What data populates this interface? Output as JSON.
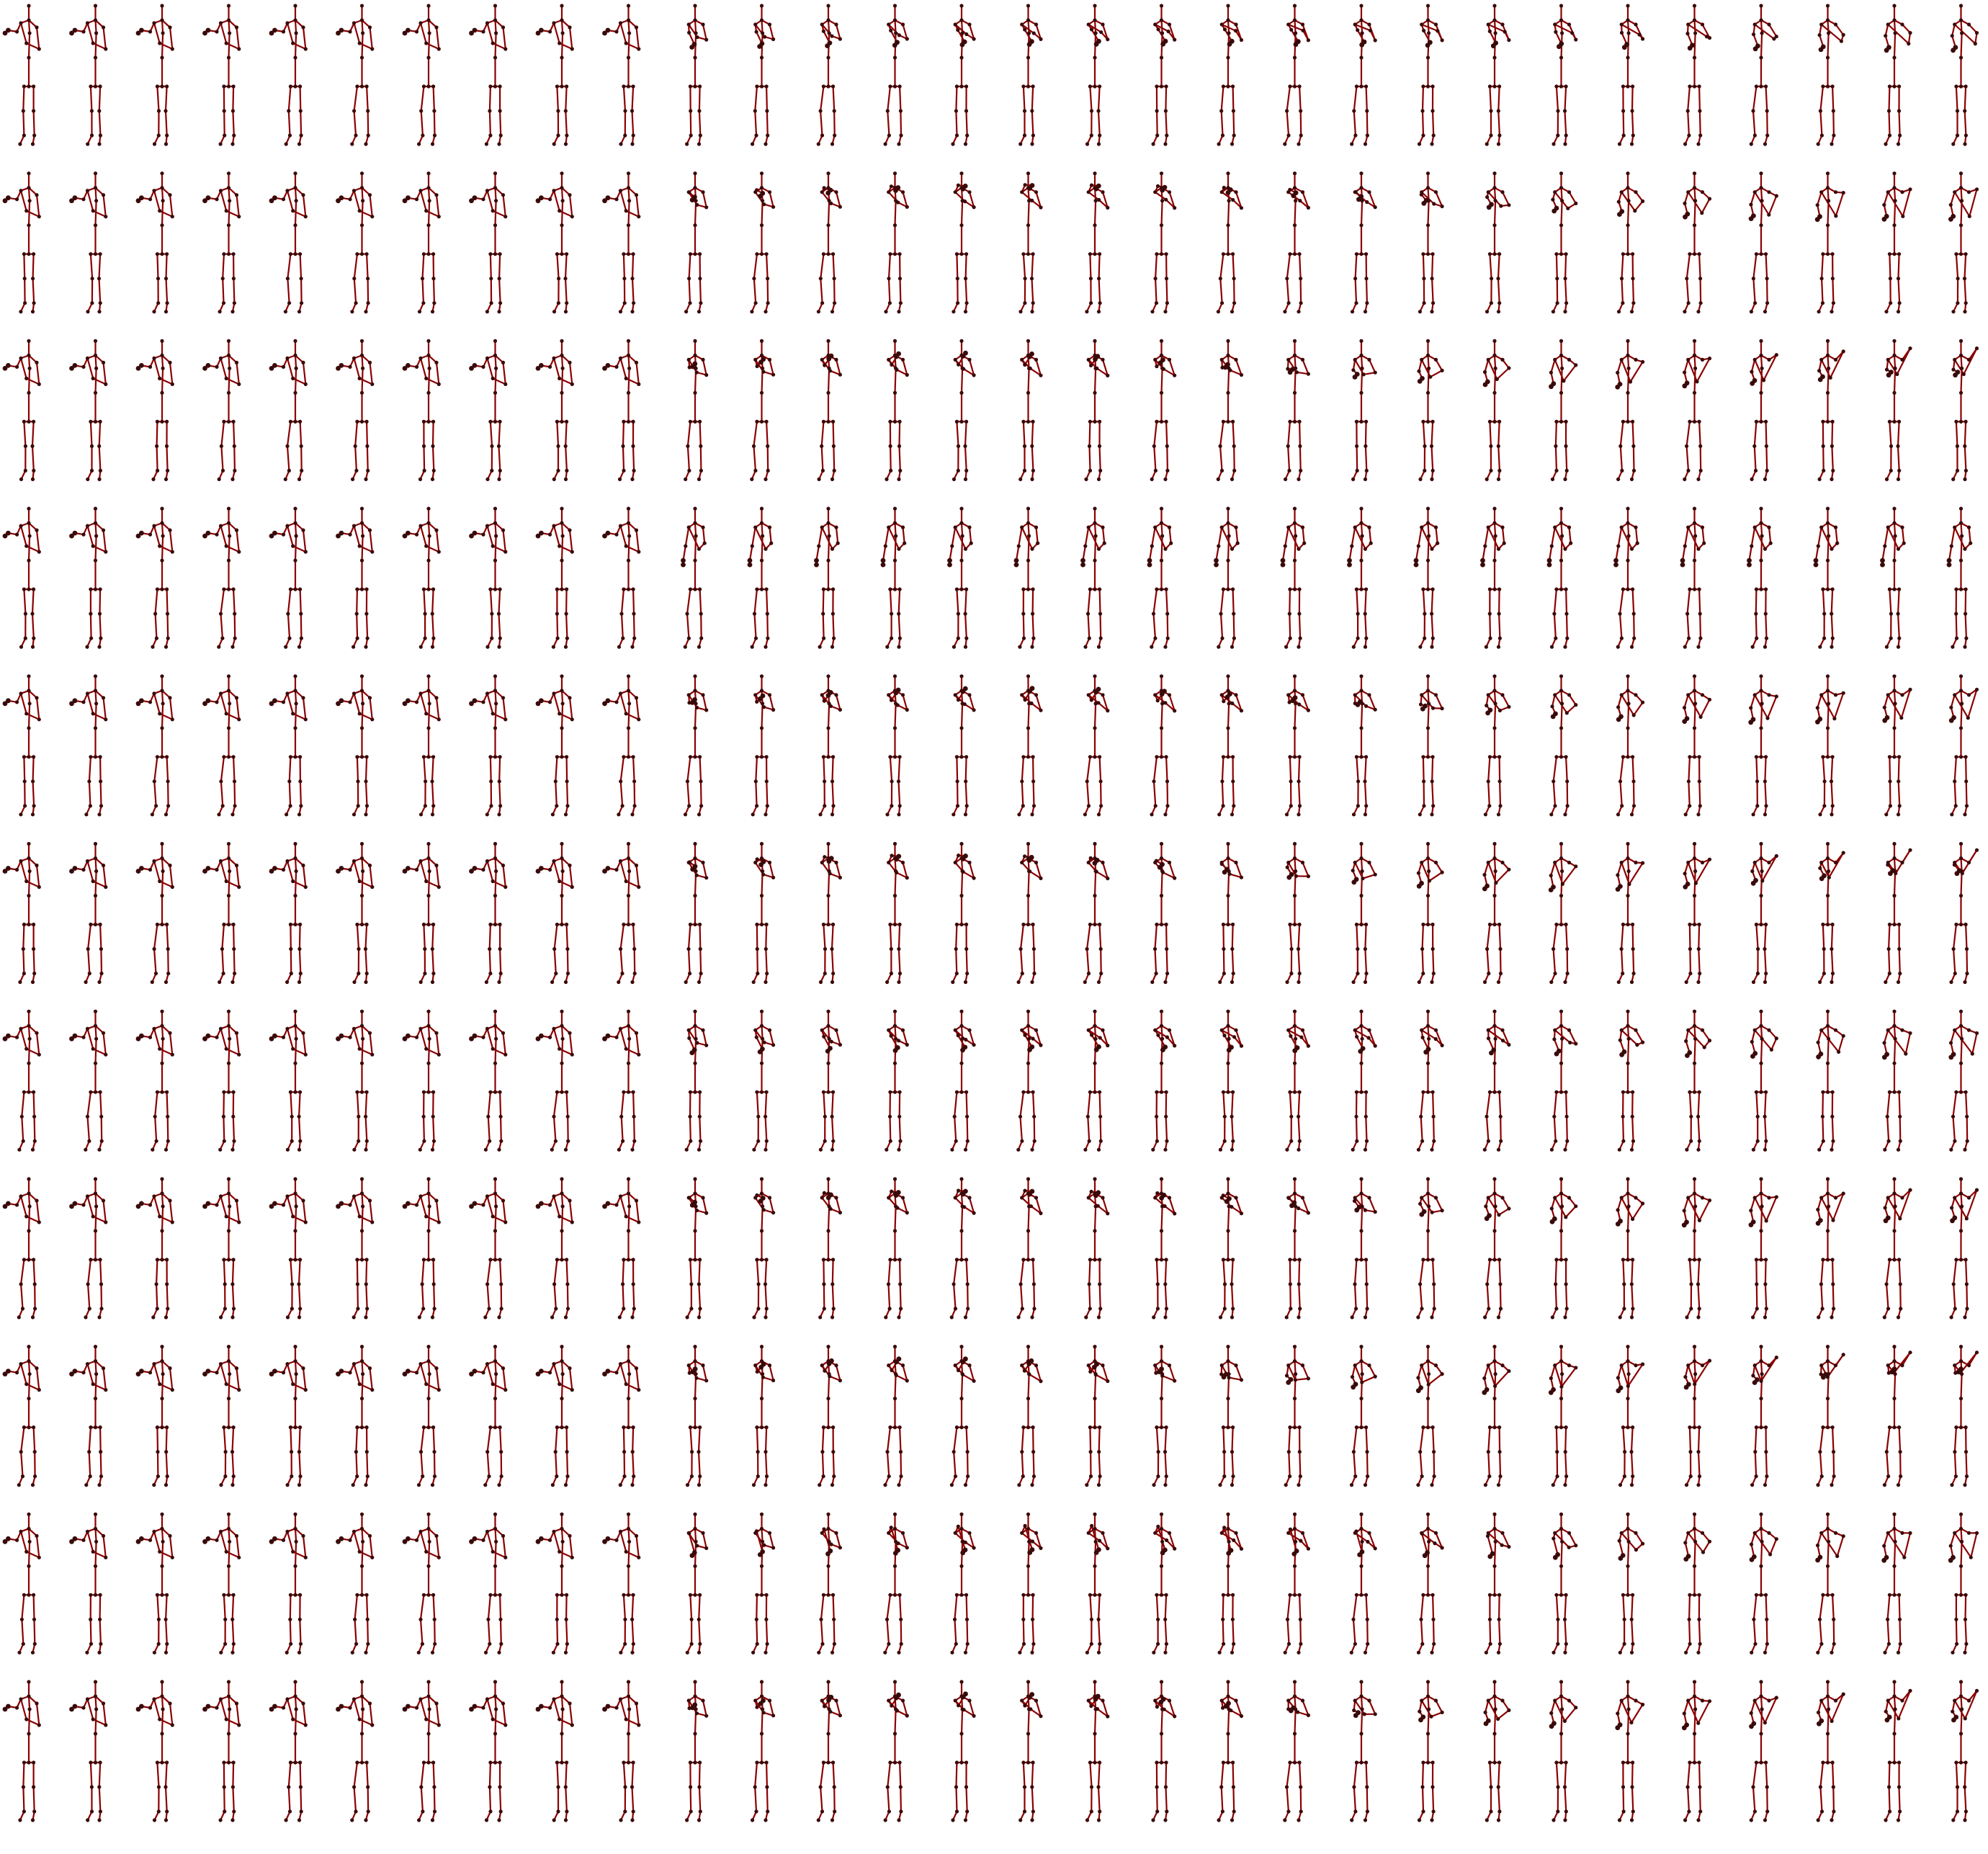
{
  "figure": {
    "rows": 11,
    "cols": 30,
    "background": "#ffffff",
    "bone_color": "#8b0000",
    "joint_color": "#3a0a0a",
    "onset_col": 10
  }
}
